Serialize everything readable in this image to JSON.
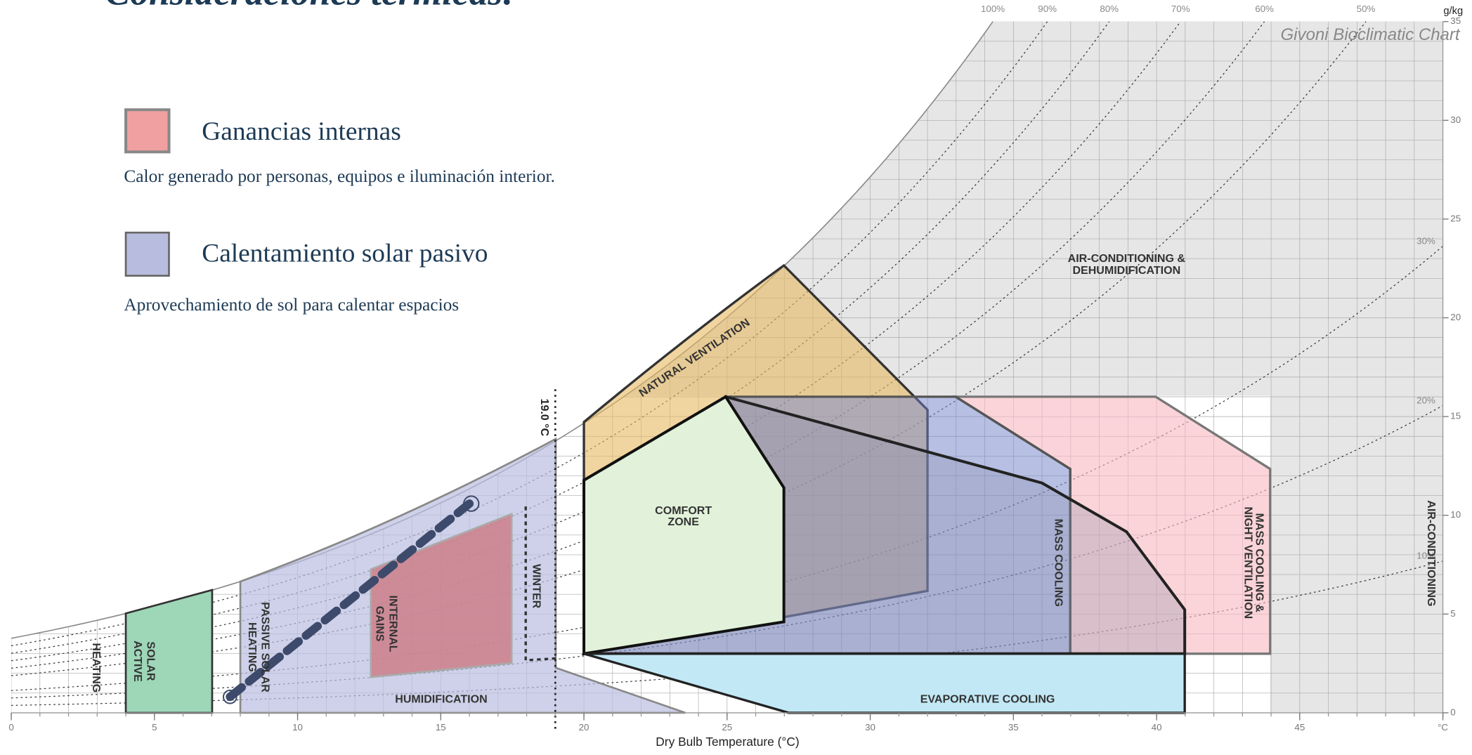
{
  "slide": {
    "title": "Consideraciones térmicas:",
    "items": [
      {
        "title": "Ganancias internas",
        "description": "Calor generado por personas, equipos e iluminación interior."
      },
      {
        "title": "Calentamiento solar pasivo",
        "description": "Aprovechamiento de sol para calentar espacios"
      }
    ]
  },
  "chart_data": {
    "type": "psychrometric",
    "title": "Givoni Bioclimatic Chart",
    "x_label": "Dry Bulb Temperature (°C)",
    "y_unit": "g/kg",
    "xlim": [
      0,
      50
    ],
    "ylim": [
      0,
      35
    ],
    "xticks": [
      0,
      5,
      10,
      15,
      20,
      25,
      30,
      35,
      40,
      45,
      {
        "value": 50,
        "label": "°C"
      }
    ],
    "yticks": [
      0,
      5,
      10,
      15,
      20,
      25,
      30,
      35
    ],
    "rh_lines": [
      {
        "value": 100,
        "label": "100%"
      },
      {
        "value": 90,
        "label": "90%"
      },
      {
        "value": 80,
        "label": "80%"
      },
      {
        "value": 70,
        "label": "70%"
      },
      {
        "value": 60,
        "label": "60%"
      },
      {
        "value": 50,
        "label": "50%"
      },
      {
        "value": 30,
        "label": "30%"
      },
      {
        "value": 20,
        "label": "20%"
      },
      {
        "value": 10,
        "label": "10%"
      }
    ],
    "winter_limit": {
      "value": 19,
      "label": "19.0 °C"
    },
    "zones": {
      "heating": "HEATING",
      "active_solar": [
        "ACTIVE",
        "SOLAR"
      ],
      "passive_solar": [
        "PASSIVE SOLAR",
        "HEATING"
      ],
      "internal_gains": [
        "INTERNAL",
        "GAINS"
      ],
      "winter": "WINTER",
      "humidification": "HUMIDIFICATION",
      "natural_ventilation": "NATURAL VENTILATION",
      "comfort": [
        "COMFORT",
        "ZONE"
      ],
      "mass_cooling": "MASS COOLING",
      "mass_cooling_night": [
        "MASS COOLING &",
        "NIGHT VENTILATION"
      ],
      "air_conditioning": "AIR-CONDITIONING",
      "ac_dehum": [
        "AIR-CONDITIONING &",
        "DEHUMIDIFICATION"
      ],
      "evaporative": "EVAPORATIVE COOLING"
    }
  }
}
